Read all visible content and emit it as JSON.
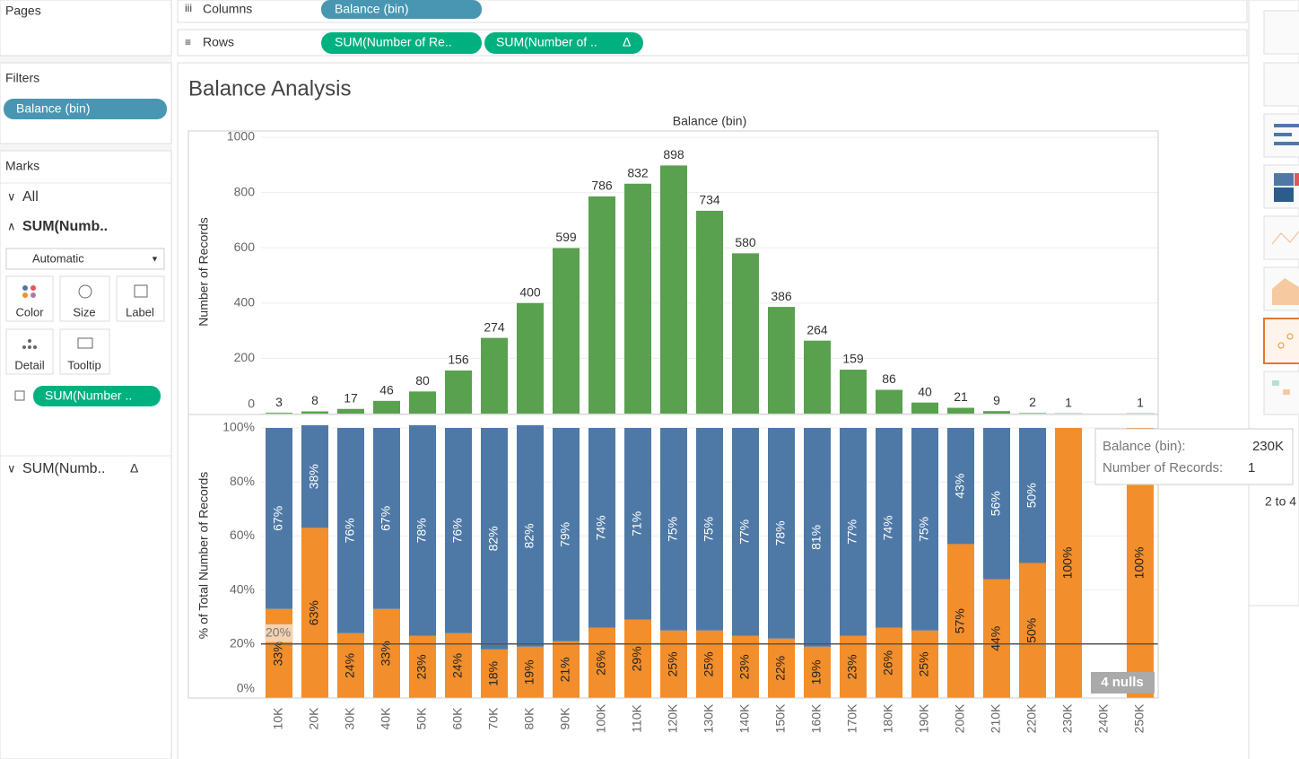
{
  "pages": {
    "label": "Pages"
  },
  "columns": {
    "label": "Columns",
    "pills": [
      "Balance (bin)"
    ]
  },
  "rows": {
    "label": "Rows",
    "pills": [
      "SUM(Number of Re..",
      "SUM(Number of .."
    ],
    "calc_icon": "Δ"
  },
  "filters": {
    "label": "Filters",
    "pills": [
      "Balance (bin)"
    ]
  },
  "marks": {
    "label": "Marks",
    "cards": [
      "All",
      "SUM(Numb..",
      "SUM(Numb.."
    ],
    "calc_icon": "Δ",
    "mark_type": "Automatic",
    "buttons": [
      "Color",
      "Size",
      "Label",
      "Detail",
      "Tooltip"
    ],
    "pill": "SUM(Number .."
  },
  "sheet_title": "Balance Analysis",
  "chart_data": [
    {
      "type": "bar",
      "title": "Balance (bin)",
      "y_label": "Number of Records",
      "values": [
        3,
        8,
        17,
        46,
        80,
        156,
        274,
        400,
        599,
        786,
        832,
        898,
        734,
        580,
        386,
        264,
        159,
        86,
        40,
        21,
        9,
        2,
        1,
        null,
        1
      ],
      "color": "#59a14f",
      "ylim": [
        0,
        1000
      ],
      "yticks": [
        0,
        200,
        400,
        600,
        800,
        1000
      ],
      "grid": true
    },
    {
      "type": "stacked_bar",
      "y_label": "% of Total Number of Records",
      "categories": [
        "10K",
        "20K",
        "30K",
        "40K",
        "50K",
        "60K",
        "70K",
        "80K",
        "90K",
        "100K",
        "110K",
        "120K",
        "130K",
        "140K",
        "150K",
        "160K",
        "170K",
        "180K",
        "190K",
        "200K",
        "210K",
        "220K",
        "230K",
        "240K",
        "250K"
      ],
      "series": [
        {
          "color": "#f28e2b",
          "values": [
            33,
            63,
            24,
            33,
            23,
            24,
            18,
            19,
            21,
            26,
            29,
            25,
            25,
            23,
            22,
            19,
            23,
            26,
            25,
            57,
            44,
            50,
            100,
            null,
            100
          ],
          "value_labels": [
            "33%",
            "63%",
            "24%",
            "33%",
            "23%",
            "24%",
            "18%",
            "19%",
            "21%",
            "26%",
            "29%",
            "25%",
            "25%",
            "23%",
            "22%",
            "19%",
            "23%",
            "26%",
            "25%",
            "57%",
            "44%",
            "50%",
            "100%",
            null,
            "100%"
          ]
        },
        {
          "color": "#4e79a7",
          "values": [
            67,
            38,
            76,
            67,
            78,
            76,
            82,
            82,
            79,
            74,
            71,
            75,
            75,
            77,
            78,
            81,
            77,
            74,
            75,
            43,
            56,
            50,
            null,
            null,
            null
          ],
          "value_labels": [
            "67%",
            "38%",
            "76%",
            "67%",
            "78%",
            "76%",
            "82%",
            "82%",
            "79%",
            "74%",
            "71%",
            "75%",
            "75%",
            "77%",
            "78%",
            "81%",
            "77%",
            "74%",
            "75%",
            "43%",
            "56%",
            "50%",
            null,
            null,
            null
          ]
        }
      ],
      "ylim": [
        0,
        100
      ],
      "yticks": [
        {
          "value": 0,
          "label": "0%"
        },
        {
          "value": 20,
          "label": "20%"
        },
        {
          "value": 40,
          "label": "40%"
        },
        {
          "value": 60,
          "label": "60%"
        },
        {
          "value": 80,
          "label": "80%"
        },
        {
          "value": 100,
          "label": "100%"
        }
      ],
      "grid": true,
      "reference_line": {
        "value": 20,
        "label": "20%"
      }
    }
  ],
  "nulls_indicator": "4 nulls",
  "tooltip": {
    "rows": [
      [
        "Balance (bin):",
        "230K"
      ],
      [
        "Number of Records:",
        "1"
      ]
    ]
  },
  "show_me": {
    "text": "2 to 4"
  }
}
